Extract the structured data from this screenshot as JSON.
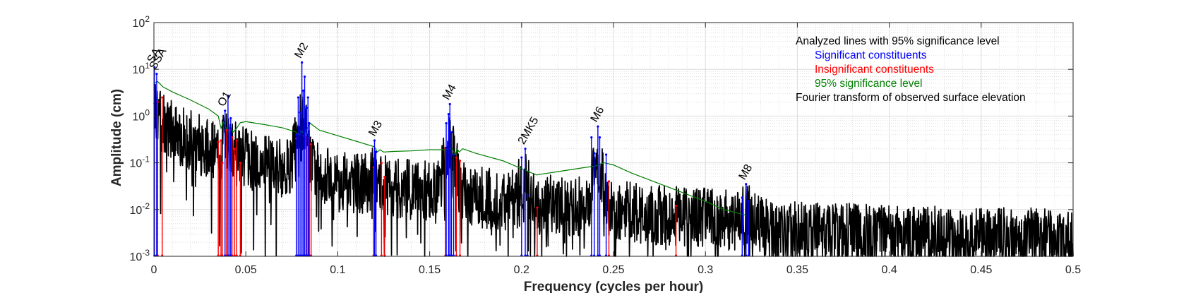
{
  "chart_data": {
    "type": "line",
    "title": "",
    "xlabel": "Frequency (cycles per hour)",
    "ylabel": "Amplitude (cm)",
    "xlim": [
      0,
      0.5
    ],
    "ylim": [
      0.001,
      100
    ],
    "yscale": "log",
    "grid": true,
    "minor_grid": true,
    "x_ticks": [
      0,
      0.05,
      0.1,
      0.15,
      0.2,
      0.25,
      0.3,
      0.35,
      0.4,
      0.45,
      0.5
    ],
    "x_tick_labels": [
      "0",
      "0.05",
      "0.1",
      "0.15",
      "0.2",
      "0.25",
      "0.3",
      "0.35",
      "0.4",
      "0.45",
      "0.5"
    ],
    "y_ticks": [
      {
        "value": 0.001,
        "base": "10",
        "exp": "-3"
      },
      {
        "value": 0.01,
        "base": "10",
        "exp": "-2"
      },
      {
        "value": 0.1,
        "base": "10",
        "exp": "-1"
      },
      {
        "value": 1,
        "base": "10",
        "exp": "0"
      },
      {
        "value": 10,
        "base": "10",
        "exp": "1"
      },
      {
        "value": 100,
        "base": "10",
        "exp": "2"
      }
    ],
    "legend": {
      "placement": "top-right",
      "entries": [
        {
          "text": "Analyzed lines with 95% significance level",
          "color": "#000000",
          "indent": false
        },
        {
          "text": "Significant constituents",
          "color": "#0000ff",
          "indent": true
        },
        {
          "text": "Insignificant constituents",
          "color": "#ff0000",
          "indent": true
        },
        {
          "text": "95% significance level",
          "color": "#007f00",
          "indent": true
        },
        {
          "text": "Fourier transform of observed surface elevation",
          "color": "#000000",
          "indent": false
        }
      ]
    },
    "series": [
      {
        "name": "Fourier transform of observed surface elevation",
        "color": "#000000",
        "style": "spectrum",
        "envelope": {
          "x": [
            0,
            0.001,
            0.003,
            0.006,
            0.01,
            0.02,
            0.03,
            0.038,
            0.045,
            0.06,
            0.07,
            0.08,
            0.09,
            0.1,
            0.11,
            0.12,
            0.13,
            0.14,
            0.155,
            0.16,
            0.165,
            0.175,
            0.19,
            0.2,
            0.21,
            0.22,
            0.235,
            0.24,
            0.245,
            0.255,
            0.27,
            0.29,
            0.31,
            0.322,
            0.33,
            0.35,
            0.4,
            0.45,
            0.5
          ],
          "y": [
            2.0,
            1.4,
            1.0,
            0.75,
            0.55,
            0.35,
            0.22,
            0.2,
            0.18,
            0.1,
            0.09,
            0.1,
            0.07,
            0.05,
            0.04,
            0.04,
            0.035,
            0.03,
            0.03,
            0.035,
            0.03,
            0.022,
            0.018,
            0.018,
            0.015,
            0.015,
            0.013,
            0.015,
            0.013,
            0.011,
            0.009,
            0.008,
            0.007,
            0.006,
            0.005,
            0.004,
            0.0032,
            0.003,
            0.0028
          ]
        },
        "peaks": [
          {
            "x": 0.0405,
            "y": 0.35
          },
          {
            "x": 0.0805,
            "y": 0.8
          },
          {
            "x": 0.1208,
            "y": 0.06
          },
          {
            "x": 0.161,
            "y": 0.3
          },
          {
            "x": 0.2013,
            "y": 0.05
          },
          {
            "x": 0.2415,
            "y": 0.1
          },
          {
            "x": 0.3221,
            "y": 0.01
          }
        ]
      },
      {
        "name": "95% significance level",
        "color": "#007f00",
        "x": [
          0,
          0.002,
          0.005,
          0.01,
          0.02,
          0.03,
          0.035,
          0.0365,
          0.0378,
          0.039,
          0.0403,
          0.0415,
          0.043,
          0.045,
          0.047,
          0.05,
          0.06,
          0.07,
          0.077,
          0.079,
          0.0805,
          0.0818,
          0.083,
          0.085,
          0.09,
          0.1,
          0.11,
          0.12,
          0.1215,
          0.123,
          0.125,
          0.13,
          0.14,
          0.15,
          0.158,
          0.1605,
          0.162,
          0.164,
          0.165,
          0.166,
          0.168,
          0.175,
          0.19,
          0.2,
          0.208,
          0.22,
          0.235,
          0.24,
          0.2415,
          0.243,
          0.245,
          0.25,
          0.26,
          0.28,
          0.3,
          0.31,
          0.3225
        ],
        "y": [
          5.0,
          5.5,
          4.2,
          3.3,
          2.2,
          1.4,
          1.0,
          0.55,
          0.75,
          0.6,
          0.42,
          0.62,
          0.45,
          0.55,
          0.72,
          0.76,
          0.66,
          0.56,
          0.46,
          0.4,
          0.5,
          0.36,
          0.52,
          0.7,
          0.5,
          0.38,
          0.29,
          0.22,
          0.17,
          0.19,
          0.17,
          0.175,
          0.18,
          0.19,
          0.19,
          0.2,
          0.2,
          0.15,
          0.2,
          0.17,
          0.2,
          0.16,
          0.11,
          0.075,
          0.055,
          0.065,
          0.08,
          0.085,
          0.09,
          0.095,
          0.1,
          0.09,
          0.06,
          0.03,
          0.015,
          0.01,
          0.0075
        ]
      },
      {
        "name": "Significant constituents",
        "color": "#0000ff",
        "style": "stem",
        "x": [
          0.0003,
          0.0015,
          0.0387,
          0.0403,
          0.0418,
          0.0775,
          0.0785,
          0.0795,
          0.0805,
          0.0812,
          0.082,
          0.083,
          0.0838,
          0.0845,
          0.12,
          0.1208,
          0.159,
          0.1603,
          0.161,
          0.1618,
          0.163,
          0.2,
          0.202,
          0.2032,
          0.238,
          0.2395,
          0.2415,
          0.2425,
          0.246,
          0.32,
          0.3221,
          0.3235
        ],
        "y": [
          11,
          8,
          1.3,
          2.7,
          0.9,
          0.4,
          2.5,
          1.2,
          14,
          3.5,
          7,
          1.5,
          2.5,
          0.7,
          0.3,
          0.17,
          0.7,
          1.1,
          1.8,
          0.45,
          0.15,
          0.13,
          0.2,
          0.02,
          0.35,
          0.16,
          0.6,
          0.35,
          0.15,
          0.018,
          0.035,
          0.015
        ]
      },
      {
        "name": "Insignificant constituents",
        "color": "#ff0000",
        "style": "stem",
        "x": [
          0.002,
          0.0045,
          0.035,
          0.0365,
          0.0372,
          0.0395,
          0.0412,
          0.0425,
          0.0438,
          0.045,
          0.047,
          0.0775,
          0.0828,
          0.0842,
          0.0855,
          0.1195,
          0.1238,
          0.1255,
          0.1586,
          0.1645,
          0.1665,
          0.2085,
          0.2475,
          0.284
        ],
        "y": [
          2.0,
          2.5,
          0.28,
          0.3,
          0.1,
          0.5,
          0.5,
          0.35,
          0.2,
          0.3,
          0.1,
          0.33,
          0.35,
          0.33,
          0.25,
          0.08,
          0.1,
          0.05,
          0.2,
          0.13,
          0.11,
          0.011,
          0.04,
          0.012
        ]
      }
    ],
    "annotations": [
      {
        "text": "SA",
        "x": 0.0003,
        "y": 11
      },
      {
        "text": "SSA",
        "x": 0.0015,
        "y": 8
      },
      {
        "text": "O1",
        "x": 0.0387,
        "y": 1.3
      },
      {
        "text": "M2",
        "x": 0.0805,
        "y": 14
      },
      {
        "text": "M3",
        "x": 0.1208,
        "y": 0.3
      },
      {
        "text": "M4",
        "x": 0.161,
        "y": 1.8
      },
      {
        "text": "2MK5",
        "x": 0.202,
        "y": 0.2
      },
      {
        "text": "M6",
        "x": 0.2415,
        "y": 0.6
      },
      {
        "text": "M8",
        "x": 0.3221,
        "y": 0.035
      }
    ]
  }
}
